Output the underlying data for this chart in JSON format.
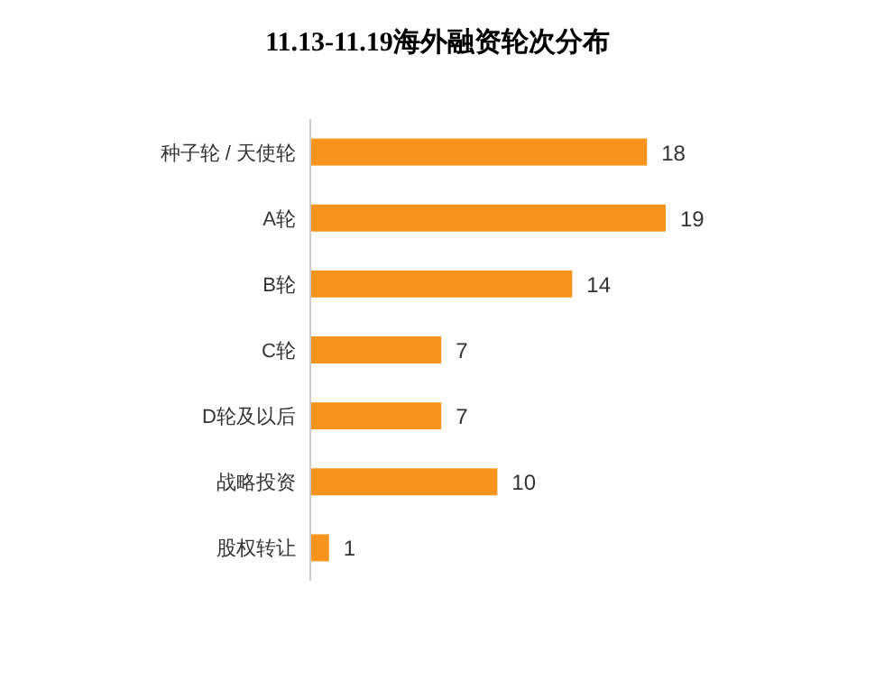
{
  "chart_data": {
    "type": "bar",
    "orientation": "horizontal",
    "title": "11.13-11.19海外融资轮次分布",
    "categories": [
      "种子轮 / 天使轮",
      "A轮",
      "B轮",
      "C轮",
      "D轮及以后",
      "战略投资",
      "股权转让"
    ],
    "values": [
      18,
      19,
      14,
      7,
      7,
      10,
      1
    ],
    "color": "#f7941d",
    "data_labels": true
  }
}
